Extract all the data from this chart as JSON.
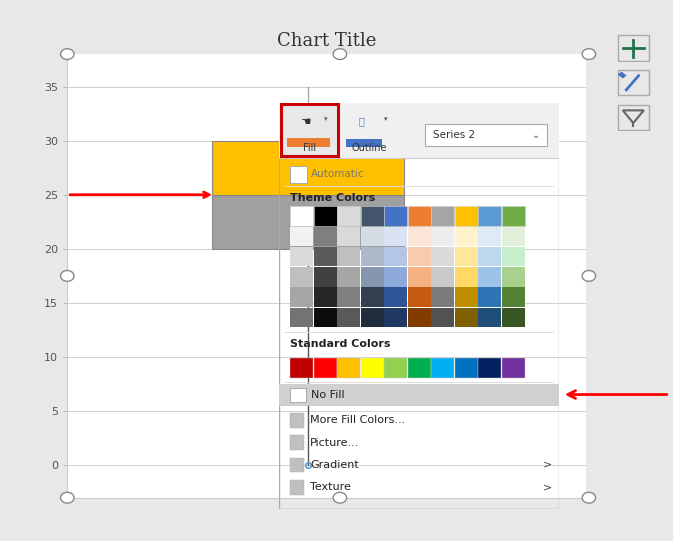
{
  "title": "Chart Title",
  "bg_color": "#e8e8e8",
  "chart_bg": "#ffffff",
  "grid_color": "#d0d0d0",
  "yticks": [
    0,
    5,
    10,
    15,
    20,
    25,
    30,
    35
  ],
  "ylim": [
    -3,
    38
  ],
  "colors_theme_row1": [
    "#ffffff",
    "#000000",
    "#d9d9d9",
    "#44546a",
    "#4472c4",
    "#ed7d31",
    "#a5a5a5",
    "#ffc000",
    "#5b9bd5",
    "#70ad47"
  ],
  "colors_theme_rows": [
    [
      "#f2f2f2",
      "#7f7f7f",
      "#d9d9d9",
      "#d6dce4",
      "#dae3f3",
      "#fce4d6",
      "#ededed",
      "#fff2cc",
      "#ddebf7",
      "#e2efda"
    ],
    [
      "#d9d9d9",
      "#595959",
      "#bfbfbf",
      "#adb9ca",
      "#b4c6e7",
      "#f8cbad",
      "#dbdbdb",
      "#ffe699",
      "#bdd7ee",
      "#c6efce"
    ],
    [
      "#bfbfbf",
      "#404040",
      "#a6a6a6",
      "#8496b0",
      "#8eaadb",
      "#f4b183",
      "#c9c9c9",
      "#ffd966",
      "#9dc3e6",
      "#a9d18e"
    ],
    [
      "#a6a6a6",
      "#262626",
      "#808080",
      "#323f4f",
      "#2f5597",
      "#c55a11",
      "#7b7b7b",
      "#bf8f00",
      "#2e75b6",
      "#538135"
    ],
    [
      "#737373",
      "#0d0d0d",
      "#595959",
      "#1f2d3d",
      "#1f3864",
      "#833c00",
      "#525252",
      "#7f5f00",
      "#1f4e79",
      "#375623"
    ]
  ],
  "colors_standard": [
    "#c00000",
    "#ff0000",
    "#ffc000",
    "#ffff00",
    "#92d050",
    "#00b050",
    "#00b0f0",
    "#0070c0",
    "#002060",
    "#7030a0"
  ],
  "menu_items": [
    "More Fill Colors...",
    "Picture...",
    "Gradient",
    "Texture"
  ],
  "series2_label": "Series 2",
  "fill_label": "Fill",
  "outline_label": "Outline",
  "automatic_label": "Automatic",
  "no_fill_label": "No Fill",
  "theme_colors_label": "Theme Colors",
  "standard_colors_label": "Standard Colors"
}
